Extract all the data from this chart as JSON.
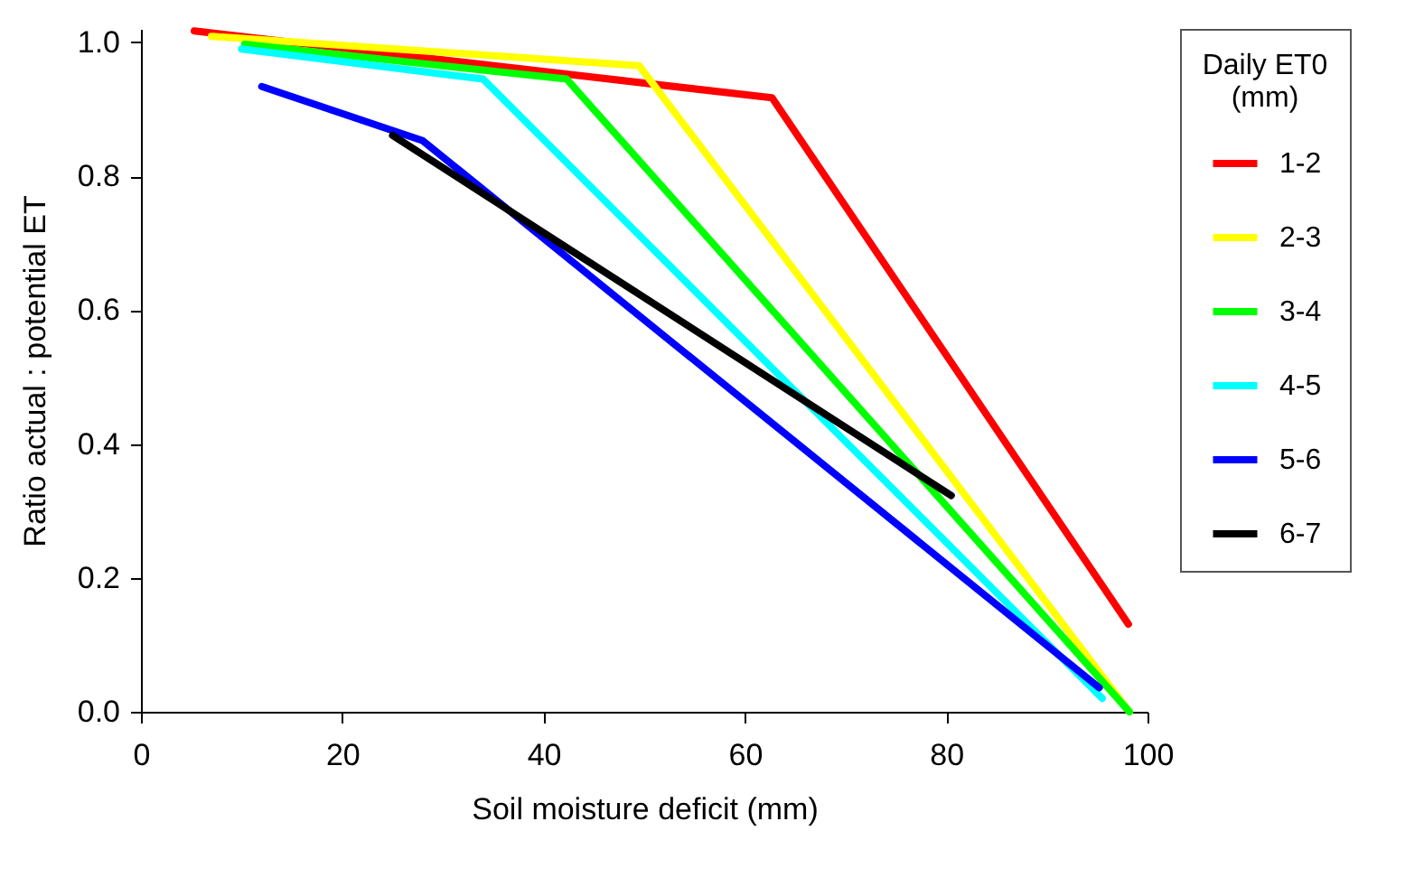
{
  "chart_data": {
    "type": "line",
    "xlabel": "Soil moisture deficit (mm)",
    "ylabel": "Ratio actual : potential ET",
    "legend_title": "Daily ET0 (mm)",
    "series": [
      {
        "name": "1-2",
        "color": "#ff0000",
        "x": [
          5.3,
          62.7,
          98.1
        ],
        "values": [
          1.017,
          0.917,
          0.131
        ]
      },
      {
        "name": "2-3",
        "color": "#ffff00",
        "x": [
          7.0,
          49.5,
          98.2
        ],
        "values": [
          1.009,
          0.965,
          0
        ]
      },
      {
        "name": "3-4",
        "color": "#00ff00",
        "x": [
          10.3,
          42.3,
          98.2
        ],
        "values": [
          0.997,
          0.945,
          0
        ]
      },
      {
        "name": "4-5",
        "color": "#00ffff",
        "x": [
          10.0,
          34.0,
          95.5
        ],
        "values": [
          0.99,
          0.945,
          0.02
        ]
      },
      {
        "name": "5-6",
        "color": "#0000ff",
        "x": [
          12.0,
          28.0,
          95.2
        ],
        "values": [
          0.934,
          0.853,
          0.036
        ]
      },
      {
        "name": "6-7",
        "color": "#000000",
        "x": [
          25.0,
          80.5
        ],
        "values": [
          0.861,
          0.323
        ]
      }
    ],
    "xlim": [
      0,
      100
    ],
    "xticks": [
      0,
      20,
      40,
      60,
      80,
      100
    ],
    "ylim": [
      0,
      1.02
    ],
    "yticks": [
      {
        "value": 0,
        "label": "0.0"
      },
      {
        "value": 0.2,
        "label": "0.2"
      },
      {
        "value": 0.4,
        "label": "0.4"
      },
      {
        "value": 0.6,
        "label": "0.6"
      },
      {
        "value": 0.8,
        "label": "0.8"
      },
      {
        "value": 1,
        "label": "1.0"
      }
    ],
    "grid": false,
    "legend": "top right",
    "marker": "none",
    "line_style": "solid"
  }
}
